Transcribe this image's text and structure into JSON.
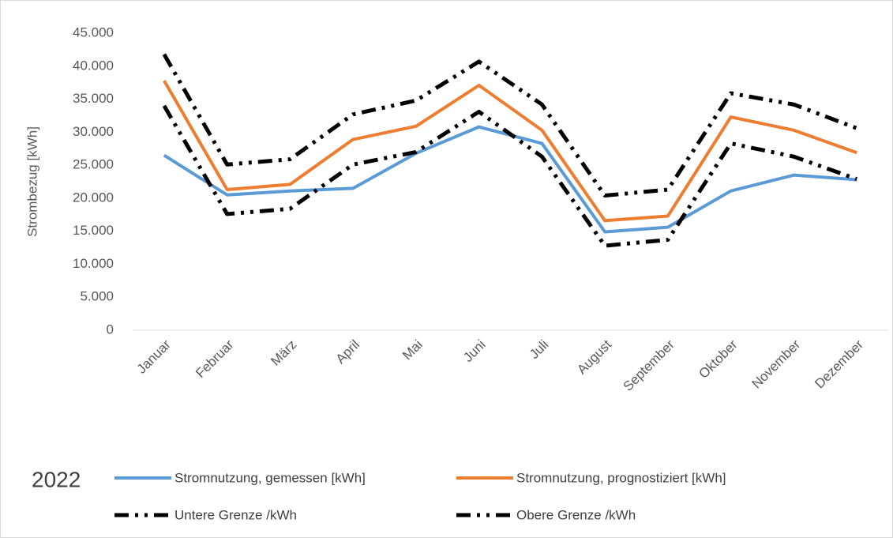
{
  "chart_data": {
    "type": "line",
    "y_label": "Strombezug [kWh]",
    "legend_title": "2022",
    "categories": [
      "Januar",
      "Februar",
      "März",
      "April",
      "Mai",
      "Juni",
      "Juli",
      "August",
      "September",
      "Oktober",
      "November",
      "Dezember"
    ],
    "series": [
      {
        "name": "Stromnutzung, gemessen [kWh]",
        "color": "#5b9bd5",
        "dash": "solid",
        "values": [
          26500,
          20500,
          21100,
          21500,
          26800,
          30800,
          28300,
          14900,
          15600,
          21100,
          23500,
          22800
        ]
      },
      {
        "name": "Stromnutzung, prognostiziert [kWh]",
        "color": "#ed7d31",
        "dash": "solid",
        "values": [
          37800,
          21300,
          22100,
          28900,
          30900,
          37100,
          30300,
          16600,
          17300,
          32300,
          30300,
          26900
        ]
      },
      {
        "name": "Untere Grenze /kWh",
        "color": "#000000",
        "dash": "dash-dot-dot",
        "values": [
          34000,
          17600,
          18400,
          25100,
          27000,
          33100,
          26300,
          12800,
          13700,
          28300,
          26300,
          22900
        ]
      },
      {
        "name": "Obere Grenze /kWh",
        "color": "#000000",
        "dash": "dash-dot-dot",
        "values": [
          41800,
          25100,
          25900,
          32700,
          34800,
          40700,
          34200,
          20400,
          21300,
          35900,
          34200,
          30600
        ]
      }
    ],
    "ylim": [
      0,
      45000
    ],
    "yticks": [
      0,
      {
        "value": 5000,
        "label": "5.000"
      },
      {
        "value": 10000,
        "label": "10.000"
      },
      {
        "value": 15000,
        "label": "15.000"
      },
      {
        "value": 20000,
        "label": "20.000"
      },
      {
        "value": 25000,
        "label": "25.000"
      },
      {
        "value": 30000,
        "label": "30.000"
      },
      {
        "value": 35000,
        "label": "35.000"
      },
      {
        "value": 40000,
        "label": "40.000"
      },
      {
        "value": 45000,
        "label": "45.000"
      }
    ],
    "grid": false
  }
}
